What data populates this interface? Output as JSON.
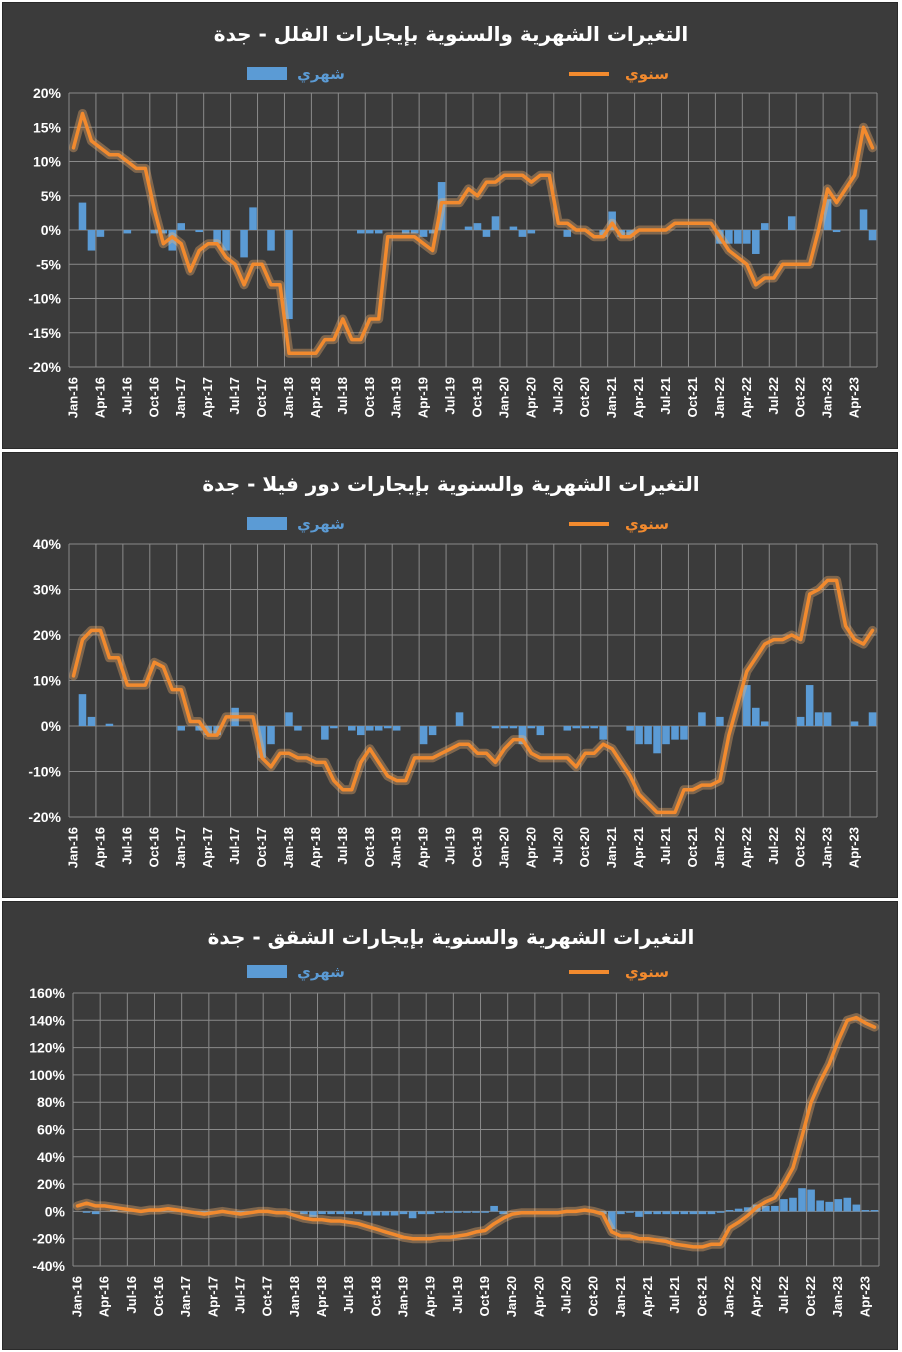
{
  "colors": {
    "annual": "#f28a2e",
    "monthly": "#5b9bd5",
    "panel_bg": "#3b3b3b",
    "grid": "#8a8a8a"
  },
  "chart_data": [
    {
      "type": "bar+line",
      "title": "التغيرات الشهرية والسنوية بإيجارات الفلل - جدة",
      "legend": {
        "monthly": "شهري",
        "annual": "سنوي",
        "placement": "top"
      },
      "ylim": [
        -20,
        20
      ],
      "yticks": [
        20,
        15,
        10,
        5,
        0,
        -5,
        -10,
        -15,
        -20
      ],
      "ytick_labels": [
        "20%",
        "15%",
        "10%",
        "5%",
        "0%",
        "-5%",
        "-10%",
        "-15%",
        "-20%"
      ],
      "x_start": "2016-01",
      "x_tick_labels": [
        "Jan-16",
        "Apr-16",
        "Jul-16",
        "Oct-16",
        "Jan-17",
        "Apr-17",
        "Jul-17",
        "Oct-17",
        "Jan-18",
        "Apr-18",
        "Jul-18",
        "Oct-18",
        "Jan-19",
        "Apr-19",
        "Jul-19",
        "Oct-19",
        "Jan-20",
        "Apr-20",
        "Jul-20",
        "Oct-20",
        "Jan-21",
        "Apr-21",
        "Jul-21",
        "Oct-21",
        "Jan-22",
        "Apr-22",
        "Jul-22",
        "Oct-22",
        "Jan-23",
        "Apr-23"
      ],
      "grid": true,
      "series": [
        {
          "name": "سنوي",
          "kind": "line",
          "values": [
            12,
            17,
            13,
            12,
            11,
            11,
            10,
            9,
            9,
            3,
            -2,
            -1,
            -2,
            -6,
            -3,
            -2,
            -2,
            -4,
            -5,
            -8,
            -5,
            -5,
            -8,
            -8,
            -18,
            -18,
            -18,
            -18,
            -16,
            -16,
            -13,
            -16,
            -16,
            -13,
            -13,
            -1,
            -1,
            -1,
            -1,
            -2,
            -3,
            4,
            4,
            4,
            6,
            5,
            7,
            7,
            8,
            8,
            8,
            7,
            8,
            8,
            1,
            1,
            0,
            0,
            -1,
            -1,
            1,
            -1,
            -1,
            0,
            0,
            0,
            0,
            1,
            1,
            1,
            1,
            1,
            -1,
            -3,
            -4,
            -5,
            -8,
            -7,
            -7,
            -5,
            -5,
            -5,
            -5,
            0,
            6,
            4,
            6,
            8,
            15,
            12
          ]
        },
        {
          "name": "شهري",
          "kind": "bar",
          "values": [
            0,
            4,
            -3,
            -1,
            0,
            0,
            -0.5,
            0,
            0,
            -0.5,
            -0.5,
            -3,
            1,
            0,
            -0.3,
            0,
            -2,
            -3,
            0,
            -4,
            3.3,
            0,
            -3,
            0,
            -13,
            0,
            0,
            0,
            0,
            0,
            0,
            0,
            -0.5,
            -0.5,
            -0.5,
            0,
            0,
            -0.5,
            -0.5,
            -1,
            -0.5,
            7,
            0,
            0,
            0.5,
            1,
            -1,
            2,
            0,
            0.5,
            -1,
            -0.5,
            0,
            0,
            0,
            -1,
            0,
            0,
            0,
            -1,
            2.7,
            -1,
            -1,
            0,
            0,
            0,
            0,
            0,
            0,
            0,
            0,
            0,
            -2,
            -2,
            -2,
            -2,
            -3.5,
            1,
            0,
            0,
            2,
            0,
            0,
            0,
            4.5,
            -0.3,
            0,
            0,
            3,
            -1.5
          ]
        }
      ]
    },
    {
      "type": "bar+line",
      "title": "التغيرات الشهرية والسنوية بإيجارات دور فيلا - جدة",
      "legend": {
        "monthly": "شهري",
        "annual": "سنوي",
        "placement": "top"
      },
      "ylim": [
        -20,
        40
      ],
      "yticks": [
        40,
        30,
        20,
        10,
        0,
        -10,
        -20
      ],
      "ytick_labels": [
        "40%",
        "30%",
        "20%",
        "10%",
        "0%",
        "-10%",
        "-20%"
      ],
      "x_start": "2016-01",
      "x_tick_labels": [
        "Jan-16",
        "Apr-16",
        "Jul-16",
        "Oct-16",
        "Jan-17",
        "Apr-17",
        "Jul-17",
        "Oct-17",
        "Jan-18",
        "Apr-18",
        "Jul-18",
        "Oct-18",
        "Jan-19",
        "Apr-19",
        "Jul-19",
        "Oct-19",
        "Jan-20",
        "Apr-20",
        "Jul-20",
        "Oct-20",
        "Jan-21",
        "Apr-21",
        "Jul-21",
        "Oct-21",
        "Jan-22",
        "Apr-22",
        "Jul-22",
        "Oct-22",
        "Jan-23",
        "Apr-23"
      ],
      "grid": true,
      "series": [
        {
          "name": "سنوي",
          "kind": "line",
          "values": [
            11,
            19,
            21,
            21,
            15,
            15,
            9,
            9,
            9,
            14,
            13,
            8,
            8,
            1,
            1,
            -2,
            -2,
            2,
            2,
            2,
            2,
            -7,
            -9,
            -6,
            -6,
            -7,
            -7,
            -8,
            -8,
            -12,
            -14,
            -14,
            -8,
            -5,
            -8,
            -11,
            -12,
            -12,
            -7,
            -7,
            -7,
            -6,
            -5,
            -4,
            -4,
            -6,
            -6,
            -8,
            -5,
            -3,
            -3,
            -6,
            -7,
            -7,
            -7,
            -7,
            -9,
            -6,
            -6,
            -4,
            -5,
            -8,
            -11,
            -15,
            -17,
            -19,
            -19,
            -19,
            -14,
            -14,
            -13,
            -13,
            -12,
            -2,
            5,
            12,
            15,
            18,
            19,
            19,
            20,
            19,
            29,
            30,
            32,
            32,
            22,
            19,
            18,
            21
          ]
        },
        {
          "name": "شهري",
          "kind": "bar",
          "values": [
            0,
            7,
            2,
            0,
            0.5,
            0,
            0,
            0,
            0,
            0,
            0,
            0,
            -1,
            0,
            -1,
            -2,
            -2,
            0,
            4,
            0,
            0,
            -7,
            -4,
            0,
            3,
            -1,
            0,
            0,
            -3,
            -0.5,
            0,
            -1,
            -2,
            -1,
            -1,
            -0.5,
            -1,
            0,
            0,
            -4,
            -2,
            0,
            0,
            3,
            0,
            0,
            0,
            -0.5,
            -0.5,
            -0.5,
            -4,
            -0.5,
            -2,
            0,
            0,
            -1,
            -0.5,
            -0.5,
            -0.5,
            -3,
            0,
            0,
            -1,
            -4,
            -4,
            -6,
            -4,
            -3,
            -3,
            0,
            3,
            0,
            2,
            0,
            0,
            9,
            4,
            1,
            0,
            0,
            0,
            2,
            9,
            3,
            3,
            0,
            0,
            1,
            0,
            3
          ]
        }
      ]
    },
    {
      "type": "bar+line",
      "title": "التغيرات الشهرية والسنوية بإيجارات الشقق - جدة",
      "legend": {
        "monthly": "شهري",
        "annual": "سنوي",
        "placement": "top"
      },
      "ylim": [
        -40,
        160
      ],
      "yticks": [
        160,
        140,
        120,
        100,
        80,
        60,
        40,
        20,
        0,
        -20,
        -40
      ],
      "ytick_labels": [
        "160%",
        "140%",
        "120%",
        "100%",
        "80%",
        "60%",
        "40%",
        "20%",
        "0%",
        "-20%",
        "-40%"
      ],
      "x_start": "2016-01",
      "x_tick_labels": [
        "Jan-16",
        "Apr-16",
        "Jul-16",
        "Oct-16",
        "Jan-17",
        "Apr-17",
        "Jul-17",
        "Oct-17",
        "Jan-18",
        "Apr-18",
        "Jul-18",
        "Oct-18",
        "Jan-19",
        "Apr-19",
        "Jul-19",
        "Oct-19",
        "Jan-20",
        "Apr-20",
        "Jul-20",
        "Oct-20",
        "Jan-21",
        "Apr-21",
        "Jul-21",
        "Oct-21",
        "Jan-22",
        "Apr-22",
        "Jul-22",
        "Oct-22",
        "Jan-23",
        "Apr-23"
      ],
      "grid": true,
      "series": [
        {
          "name": "سنوي",
          "kind": "line",
          "values": [
            4,
            6,
            4,
            4,
            3,
            2,
            1,
            0,
            1,
            1,
            2,
            1,
            0,
            -1,
            -2,
            -1,
            0,
            -1,
            -2,
            -1,
            0,
            0,
            -1,
            -1,
            -3,
            -5,
            -6,
            -6,
            -7,
            -7,
            -8,
            -9,
            -11,
            -13,
            -15,
            -17,
            -19,
            -20,
            -20,
            -20,
            -19,
            -19,
            -18,
            -17,
            -15,
            -14,
            -9,
            -5,
            -2,
            -1,
            -1,
            -1,
            -1,
            -1,
            0,
            0,
            1,
            0,
            -2,
            -15,
            -18,
            -18,
            -20,
            -20,
            -21,
            -22,
            -24,
            -25,
            -26,
            -26,
            -24,
            -24,
            -12,
            -8,
            -3,
            3,
            7,
            10,
            20,
            32,
            55,
            80,
            95,
            108,
            125,
            140,
            142,
            138,
            135
          ]
        },
        {
          "name": "شهري",
          "kind": "bar",
          "values": [
            0,
            -1,
            -2,
            0,
            1,
            0,
            0,
            0,
            1,
            0,
            0,
            0,
            0,
            -1,
            -1,
            0,
            0,
            -1,
            -1,
            0,
            0,
            0,
            0,
            0,
            0,
            -2,
            -4,
            -2,
            -2,
            -2,
            -2,
            -2,
            -3,
            -3,
            -3,
            -3,
            -2,
            -5,
            -2,
            -2,
            -1,
            -1,
            -1,
            -1,
            -1,
            -1,
            4,
            -2,
            0,
            0,
            0,
            0,
            0,
            0,
            0,
            0,
            0,
            0,
            -2,
            -13,
            -2,
            -1,
            -4,
            -2,
            -2,
            -2,
            -2,
            -2,
            -2,
            -2,
            -2,
            -1,
            1,
            2,
            3,
            5,
            4,
            4,
            9,
            10,
            17,
            16,
            8,
            7,
            9,
            10,
            5,
            1,
            1
          ]
        }
      ]
    }
  ]
}
